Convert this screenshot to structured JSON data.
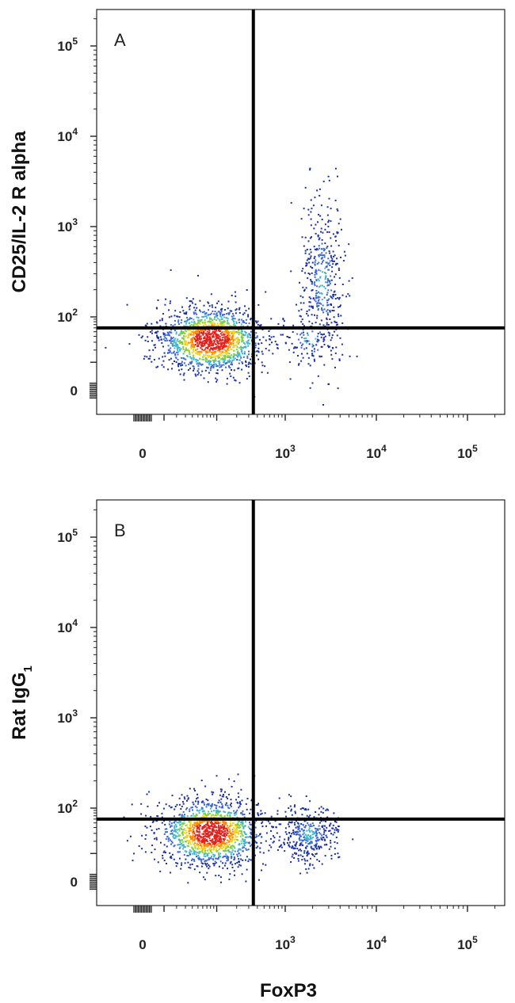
{
  "chart_data": [
    {
      "type": "scatter",
      "panel_label": "A",
      "xlabel": "FoxP3",
      "ylabel": "CD25/IL-2 R alpha",
      "scale": "biexponential",
      "xlim": [
        -40,
        250000
      ],
      "ylim": [
        -40,
        250000
      ],
      "x_tick_labels": [
        {
          "value": 0,
          "base": "0",
          "exp": ""
        },
        {
          "value": 1000,
          "base": "10",
          "exp": "3"
        },
        {
          "value": 10000,
          "base": "10",
          "exp": "4"
        },
        {
          "value": 100000,
          "base": "10",
          "exp": "5"
        }
      ],
      "y_tick_labels": [
        {
          "value": 0,
          "base": "0",
          "exp": ""
        },
        {
          "value": 100,
          "base": "10",
          "exp": "2"
        },
        {
          "value": 1000,
          "base": "10",
          "exp": "3"
        },
        {
          "value": 10000,
          "base": "10",
          "exp": "4"
        },
        {
          "value": 100000,
          "base": "10",
          "exp": "5"
        }
      ],
      "quadrant_gate": {
        "x": 350,
        "y": 60
      },
      "populations": [
        {
          "center": [
            80,
            35
          ],
          "count": 1500,
          "spread": [
            0.55,
            0.35
          ]
        },
        {
          "center": [
            2500,
            250
          ],
          "count": 420,
          "spread": [
            0.22,
            0.9
          ]
        },
        {
          "center": [
            1800,
            35
          ],
          "count": 110,
          "spread": [
            0.35,
            0.3
          ]
        }
      ],
      "color_scale": [
        "#1a2fa0",
        "#3a66d8",
        "#3fb6cc",
        "#7fcf3a",
        "#f1d21c",
        "#ff8a00",
        "#e5201b"
      ]
    },
    {
      "type": "scatter",
      "panel_label": "B",
      "xlabel": "FoxP3",
      "ylabel": "Rat IgG",
      "ylabel_subscript": "1",
      "scale": "biexponential",
      "xlim": [
        -40,
        250000
      ],
      "ylim": [
        -40,
        250000
      ],
      "x_tick_labels": [
        {
          "value": 0,
          "base": "0",
          "exp": ""
        },
        {
          "value": 1000,
          "base": "10",
          "exp": "3"
        },
        {
          "value": 10000,
          "base": "10",
          "exp": "4"
        },
        {
          "value": 100000,
          "base": "10",
          "exp": "5"
        }
      ],
      "y_tick_labels": [
        {
          "value": 0,
          "base": "0",
          "exp": ""
        },
        {
          "value": 100,
          "base": "10",
          "exp": "2"
        },
        {
          "value": 1000,
          "base": "10",
          "exp": "3"
        },
        {
          "value": 10000,
          "base": "10",
          "exp": "4"
        },
        {
          "value": 100000,
          "base": "10",
          "exp": "5"
        }
      ],
      "quadrant_gate": {
        "x": 350,
        "y": 60
      },
      "populations": [
        {
          "center": [
            80,
            32
          ],
          "count": 1500,
          "spread": [
            0.55,
            0.35
          ]
        },
        {
          "center": [
            1800,
            30
          ],
          "count": 380,
          "spread": [
            0.3,
            0.3
          ]
        }
      ],
      "color_scale": [
        "#1a2fa0",
        "#3a66d8",
        "#3fb6cc",
        "#7fcf3a",
        "#f1d21c",
        "#ff8a00",
        "#e5201b"
      ]
    }
  ],
  "x_axis_title": "FoxP3"
}
